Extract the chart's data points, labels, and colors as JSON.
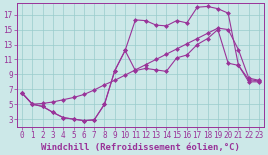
{
  "background_color": "#cce8e8",
  "grid_color": "#99cccc",
  "line_color": "#993399",
  "marker": "D",
  "markersize": 2.5,
  "linewidth": 0.8,
  "xlabel": "Windchill (Refroidissement éolien,°C)",
  "xlabel_fontsize": 6.5,
  "tick_fontsize": 5.5,
  "xlim": [
    -0.5,
    23.5
  ],
  "ylim": [
    2.0,
    18.5
  ],
  "yticks": [
    3,
    5,
    7,
    9,
    11,
    13,
    15,
    17
  ],
  "xticks": [
    0,
    1,
    2,
    3,
    4,
    5,
    6,
    7,
    8,
    9,
    10,
    11,
    12,
    13,
    14,
    15,
    16,
    17,
    18,
    19,
    20,
    21,
    22,
    23
  ],
  "line1_x": [
    0,
    1,
    2,
    3,
    4,
    5,
    6,
    7,
    8,
    9,
    10,
    11,
    12,
    13,
    14,
    15,
    16,
    17,
    18,
    19,
    20,
    21,
    22,
    23
  ],
  "line1_y": [
    6.5,
    5.0,
    4.7,
    3.9,
    3.2,
    3.0,
    2.8,
    2.9,
    5.0,
    9.5,
    12.2,
    16.3,
    16.2,
    15.6,
    15.5,
    16.2,
    15.9,
    18.0,
    18.1,
    17.8,
    17.2,
    10.2,
    8.0,
    8.0
  ],
  "line2_x": [
    0,
    1,
    2,
    3,
    4,
    5,
    6,
    7,
    8,
    9,
    10,
    11,
    12,
    13,
    14,
    15,
    16,
    17,
    18,
    19,
    20,
    21,
    22,
    23
  ],
  "line2_y": [
    6.5,
    5.0,
    5.1,
    5.3,
    5.6,
    5.9,
    6.3,
    6.9,
    7.6,
    8.2,
    8.9,
    9.6,
    10.3,
    11.0,
    11.7,
    12.4,
    13.1,
    13.8,
    14.5,
    15.2,
    15.0,
    12.3,
    8.5,
    8.2
  ],
  "line3_x": [
    0,
    1,
    2,
    3,
    4,
    5,
    6,
    7,
    8,
    9,
    10,
    11,
    12,
    13,
    14,
    15,
    16,
    17,
    18,
    19,
    20,
    21,
    22,
    23
  ],
  "line3_y": [
    6.5,
    5.0,
    4.7,
    3.9,
    3.2,
    3.0,
    2.8,
    2.9,
    5.0,
    9.5,
    12.2,
    9.5,
    9.8,
    9.6,
    9.4,
    11.2,
    11.6,
    13.0,
    13.8,
    15.0,
    10.5,
    10.2,
    8.3,
    8.1
  ]
}
